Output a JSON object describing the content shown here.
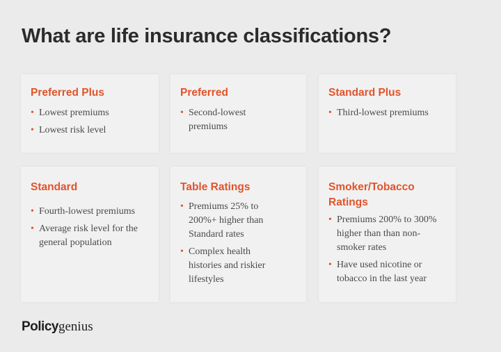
{
  "title": "What are life insurance classifications?",
  "cards": [
    {
      "title": "Preferred Plus",
      "bullets": [
        "Lowest premiums",
        "Lowest risk level"
      ]
    },
    {
      "title": "Preferred",
      "bullets": [
        "Second-lowest premiums"
      ]
    },
    {
      "title": "Standard Plus",
      "bullets": [
        "Third-lowest premiums"
      ]
    },
    {
      "title": "Standard",
      "bullets": [
        "Fourth-lowest premiums",
        "Average risk level for the general population"
      ]
    },
    {
      "title": "Table Ratings",
      "bullets": [
        "Premiums 25% to 200%+ higher than Standard rates",
        "Complex health histories and riskier lifestyles"
      ]
    },
    {
      "title": "Smoker/Tobacco Ratings",
      "bullets": [
        "Premiums 200% to 300% higher than than non-smoker rates",
        "Have used nicotine or tobacco in the last year"
      ]
    }
  ],
  "logo": {
    "part1": "Policy",
    "part2": "genius"
  },
  "colors": {
    "accent": "#e0542a",
    "background": "#ebebeb",
    "card": "#f1f1f2"
  }
}
